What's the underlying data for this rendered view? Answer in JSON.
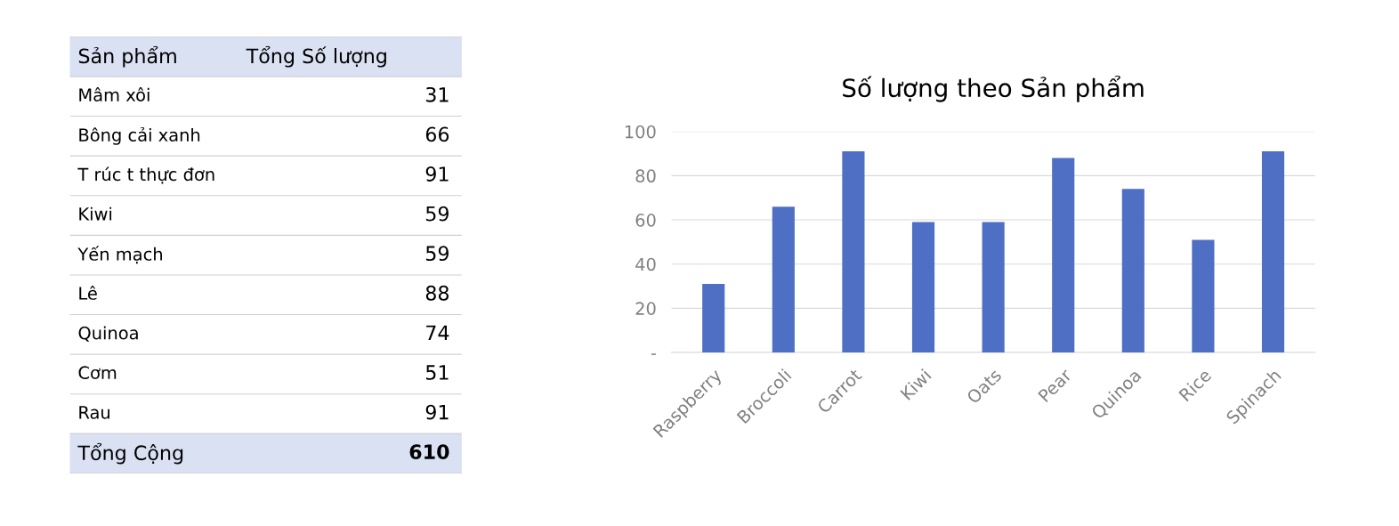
{
  "chart_data": [
    {
      "type": "other",
      "xlabel": "Sản phẩm",
      "ylabel": "Tổng Số lượng",
      "categories": [
        "Mâm xôi",
        "Bông cải xanh",
        "T rúc t thực đơn",
        "Kiwi",
        "Yến mạch",
        "Lê",
        "Quinoa",
        "Cơm",
        "Rau"
      ],
      "values": [
        31,
        66,
        91,
        59,
        59,
        88,
        74,
        51,
        91
      ],
      "data_labels": true,
      "annotations": [
        "Tổng Cộng",
        "610"
      ]
    },
    {
      "type": "bar",
      "title": "Số lượng theo Sản phẩm",
      "categories": [
        "Raspberry",
        "Broccoli",
        "Carrot",
        "Kiwi",
        "Oats",
        "Pear",
        "Quinoa",
        "Rice",
        "Spinach"
      ],
      "values": [
        31,
        66,
        91,
        59,
        59,
        88,
        74,
        51,
        91
      ],
      "color": "#4f6fc5",
      "ylim": [
        0,
        100
      ],
      "yticks": [
        {
          "value": 0,
          "label": "-"
        },
        20,
        40,
        60,
        80,
        100
      ],
      "grid": "y"
    }
  ]
}
